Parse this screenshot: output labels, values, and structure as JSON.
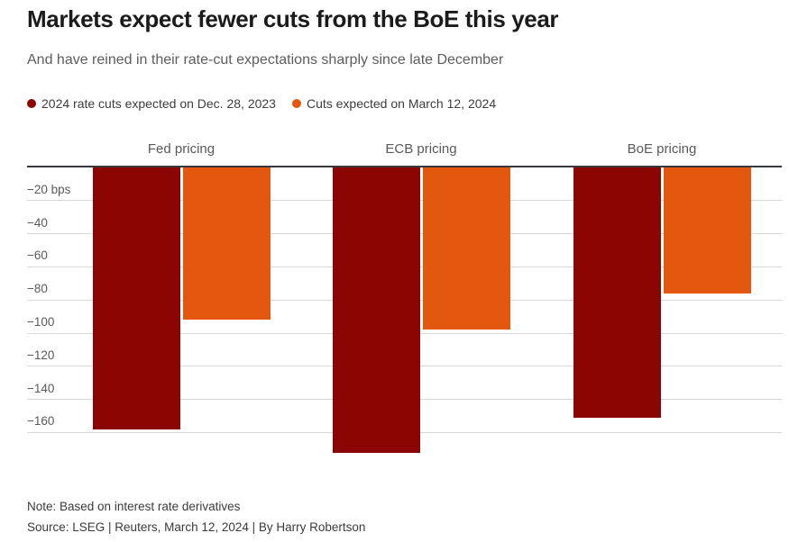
{
  "header": {
    "title": "Markets expect fewer cuts from the BoE this year",
    "subtitle": "And have reined in their rate-cut expectations sharply since late December"
  },
  "legend": [
    {
      "label": "2024 rate cuts expected on Dec. 28, 2023",
      "color": "#8b0503"
    },
    {
      "label": "Cuts expected on March 12, 2024",
      "color": "#e4570f"
    }
  ],
  "chart_data": {
    "type": "bar",
    "orientation": "vertical-negative",
    "unit": "bps",
    "categories": [
      "Fed pricing",
      "ECB pricing",
      "BoE pricing"
    ],
    "series": [
      {
        "name": "2024 rate cuts expected on Dec. 28, 2023",
        "color": "#8b0503",
        "values": [
          -158,
          -172,
          -151
        ]
      },
      {
        "name": "Cuts expected on March 12, 2024",
        "color": "#e4570f",
        "values": [
          -92,
          -98,
          -76
        ]
      }
    ],
    "ylim": [
      0,
      -180
    ],
    "yticks": [
      -20,
      -40,
      -60,
      -80,
      -100,
      -120,
      -140,
      -160
    ],
    "ytick_labels": [
      "−20 bps",
      "−40",
      "−60",
      "−80",
      "−100",
      "−120",
      "−140",
      "−160"
    ],
    "grid": true,
    "baseline": "top",
    "grid_color": "#d8d8d8",
    "baseline_color": "#38383c"
  },
  "footer": {
    "note": "Note: Based on interest rate derivatives",
    "source": "Source: LSEG | Reuters, March 12, 2024 | By Harry Robertson"
  }
}
